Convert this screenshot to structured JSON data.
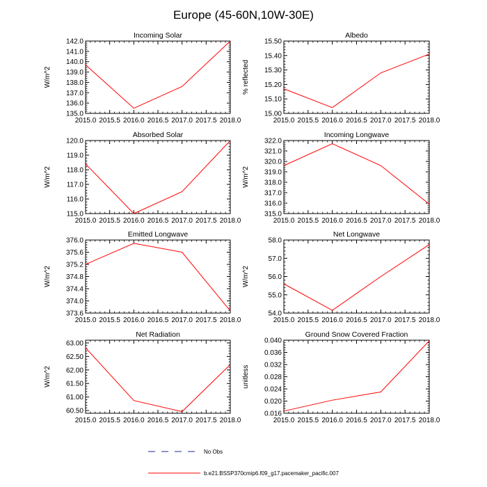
{
  "figure": {
    "title": "Europe (45-60N,10W-30E)"
  },
  "legend": {
    "obs_label": "No Obs",
    "model_label": "b.e21.BSSP370cmip6.f09_g17.pacemaker_pacific.007",
    "obs_color": "#1f2a8a",
    "model_color": "#ff0000"
  },
  "chart_data": [
    {
      "type": "line",
      "title": "Incoming Solar",
      "ylabel": "W/m^2",
      "xlabel": "",
      "x": [
        2015,
        2016,
        2017,
        2018
      ],
      "values": [
        139.7,
        135.5,
        137.6,
        142.0
      ],
      "xlim": [
        2015,
        2018
      ],
      "ylim": [
        135,
        142
      ],
      "xticks": [
        "2015.0",
        "2015.5",
        "2016.0",
        "2016.5",
        "2017.0",
        "2017.5",
        "2018.0"
      ],
      "yticks": [
        "135.0",
        "136.0",
        "137.0",
        "138.0",
        "139.0",
        "140.0",
        "141.0",
        "142.0"
      ],
      "color": "#ff0000"
    },
    {
      "type": "line",
      "title": "Albedo",
      "ylabel": "% reflected",
      "xlabel": "",
      "x": [
        2015,
        2016,
        2017,
        2018
      ],
      "values": [
        15.17,
        15.04,
        15.28,
        15.41
      ],
      "xlim": [
        2015,
        2018
      ],
      "ylim": [
        15.0,
        15.5
      ],
      "xticks": [
        "2015.0",
        "2015.5",
        "2016.0",
        "2016.5",
        "2017.0",
        "2017.5",
        "2018.0"
      ],
      "yticks": [
        "15.00",
        "15.10",
        "15.20",
        "15.30",
        "15.40",
        "15.50"
      ],
      "color": "#ff0000"
    },
    {
      "type": "line",
      "title": "Absorbed Solar",
      "ylabel": "W/m^2",
      "xlabel": "",
      "x": [
        2015,
        2016,
        2017,
        2018
      ],
      "values": [
        118.4,
        115.0,
        116.5,
        120.0
      ],
      "xlim": [
        2015,
        2018
      ],
      "ylim": [
        115,
        120
      ],
      "xticks": [
        "2015.0",
        "2015.5",
        "2016.0",
        "2016.5",
        "2017.0",
        "2017.5",
        "2018.0"
      ],
      "yticks": [
        "115.0",
        "116.0",
        "117.0",
        "118.0",
        "119.0",
        "120.0"
      ],
      "color": "#ff0000"
    },
    {
      "type": "line",
      "title": "Incoming Longwave",
      "ylabel": "W/m^2",
      "xlabel": "",
      "x": [
        2015,
        2016,
        2017,
        2018
      ],
      "values": [
        319.6,
        321.7,
        319.6,
        315.9
      ],
      "xlim": [
        2015,
        2018
      ],
      "ylim": [
        315,
        322
      ],
      "xticks": [
        "2015.0",
        "2015.5",
        "2016.0",
        "2016.5",
        "2017.0",
        "2017.5",
        "2018.0"
      ],
      "yticks": [
        "315.0",
        "316.0",
        "317.0",
        "318.0",
        "319.0",
        "320.0",
        "321.0",
        "322.0"
      ],
      "color": "#ff0000"
    },
    {
      "type": "line",
      "title": "Emitted Longwave",
      "ylabel": "W/m^2",
      "xlabel": "",
      "x": [
        2015,
        2016,
        2017,
        2018
      ],
      "values": [
        375.2,
        375.89,
        375.6,
        373.67
      ],
      "xlim": [
        2015,
        2018
      ],
      "ylim": [
        373.6,
        376.0
      ],
      "xticks": [
        "2015.0",
        "2015.5",
        "2016.0",
        "2016.5",
        "2017.0",
        "2017.5",
        "2018.0"
      ],
      "yticks": [
        "373.6",
        "374.0",
        "374.4",
        "374.8",
        "375.2",
        "375.6",
        "376.0"
      ],
      "color": "#ff0000"
    },
    {
      "type": "line",
      "title": "Net Longwave",
      "ylabel": "W/m^2",
      "xlabel": "",
      "x": [
        2015,
        2016,
        2017,
        2018
      ],
      "values": [
        55.6,
        54.15,
        56.0,
        57.75
      ],
      "xlim": [
        2015,
        2018
      ],
      "ylim": [
        54,
        58
      ],
      "xticks": [
        "2015.0",
        "2015.5",
        "2016.0",
        "2016.5",
        "2017.0",
        "2017.5",
        "2018.0"
      ],
      "yticks": [
        "54.0",
        "55.0",
        "56.0",
        "57.0",
        "58.0"
      ],
      "color": "#ff0000"
    },
    {
      "type": "line",
      "title": "Net Radiation",
      "ylabel": "W/m^2",
      "xlabel": "",
      "x": [
        2015,
        2016,
        2017,
        2018
      ],
      "values": [
        62.82,
        60.87,
        60.46,
        62.2
      ],
      "xlim": [
        2015,
        2018
      ],
      "ylim": [
        60.4,
        63.1
      ],
      "xticks": [
        "2015.0",
        "2015.5",
        "2016.0",
        "2016.5",
        "2017.0",
        "2017.5",
        "2018.0"
      ],
      "yticks": [
        "60.50",
        "61.00",
        "61.50",
        "62.00",
        "62.50",
        "63.00"
      ],
      "ytick_values": [
        60.5,
        61.0,
        61.5,
        62.0,
        62.5,
        63.0
      ],
      "color": "#ff0000"
    },
    {
      "type": "line",
      "title": "Ground Snow Covered Fraction",
      "ylabel": "unitless",
      "xlabel": "",
      "x": [
        2015,
        2016,
        2017,
        2018
      ],
      "values": [
        0.0167,
        0.0203,
        0.023,
        0.0398
      ],
      "xlim": [
        2015,
        2018
      ],
      "ylim": [
        0.016,
        0.04
      ],
      "xticks": [
        "2015.0",
        "2015.5",
        "2016.0",
        "2016.5",
        "2017.0",
        "2017.5",
        "2018.0"
      ],
      "yticks": [
        "0.016",
        "0.020",
        "0.024",
        "0.028",
        "0.032",
        "0.036",
        "0.040"
      ],
      "color": "#ff0000"
    }
  ]
}
